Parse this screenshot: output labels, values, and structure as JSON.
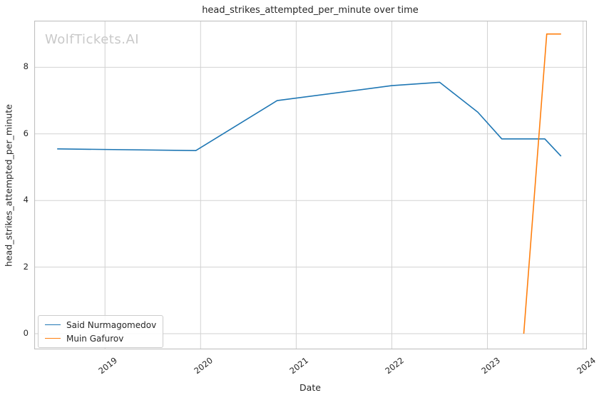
{
  "watermark": "WolfTickets.AI",
  "colors": {
    "series_blue": "#1f77b4",
    "series_orange": "#ff7f0e",
    "grid": "#d2d2d2",
    "plot_border": "#c0c0c0",
    "text": "#262626",
    "watermark": "#c9c9c9",
    "background": "#ffffff"
  },
  "chart_data": {
    "type": "line",
    "title": "head_strikes_attempted_per_minute over time",
    "xlabel": "Date",
    "ylabel": "head_strikes_attempted_per_minute",
    "xlim": [
      2018.26,
      2024.04
    ],
    "ylim": [
      -0.47,
      9.4
    ],
    "x_ticks": [
      2019,
      2020,
      2021,
      2022,
      2023,
      2024
    ],
    "y_ticks": [
      0,
      2,
      4,
      6,
      8
    ],
    "grid": true,
    "legend_position": "lower left",
    "series": [
      {
        "name": "Said Nurmagomedov",
        "color": "#1f77b4",
        "x": [
          2018.5,
          2019.95,
          2020.8,
          2022.0,
          2022.5,
          2022.9,
          2023.15,
          2023.6,
          2023.77
        ],
        "y": [
          5.55,
          5.5,
          7.0,
          7.45,
          7.55,
          6.65,
          5.85,
          5.85,
          5.33
        ]
      },
      {
        "name": "Muin Gafurov",
        "color": "#ff7f0e",
        "x": [
          2023.38,
          2023.62,
          2023.77
        ],
        "y": [
          0.0,
          9.0,
          9.0
        ]
      }
    ]
  }
}
